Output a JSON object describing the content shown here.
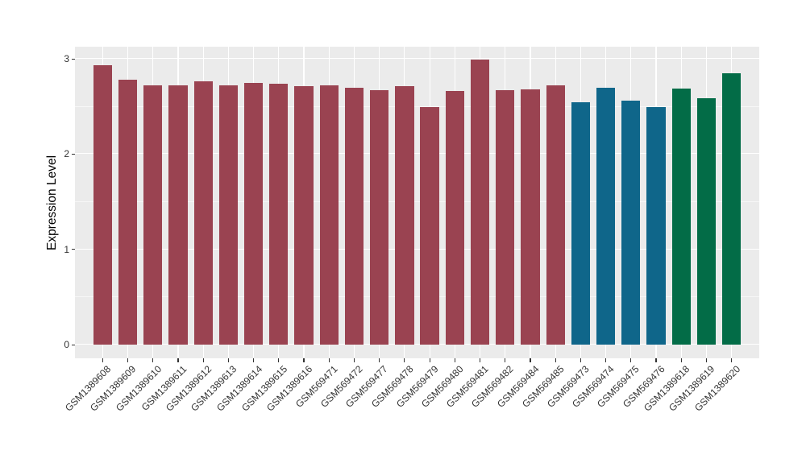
{
  "chart_data": {
    "type": "bar",
    "title": "",
    "xlabel": "",
    "ylabel": "Expression Level",
    "legend_position": "none",
    "panel_background": "#EBEBEB",
    "grid": {
      "color": "#ffffff",
      "major_yticks": [
        0,
        1,
        2,
        3
      ],
      "minor_yticks": [
        0.5,
        1.5,
        2.5
      ],
      "vertical_major": "at-each-category"
    },
    "ylim": [
      0,
      3.13
    ],
    "yticks": [
      "0",
      "1",
      "2",
      "3"
    ],
    "bar_width_fraction": 0.75,
    "colors": {
      "maroon": "#9A4351",
      "teal": "#0F668A",
      "green": "#036C47"
    },
    "categories": [
      "GSM1389608",
      "GSM1389609",
      "GSM1389610",
      "GSM1389611",
      "GSM1389612",
      "GSM1389613",
      "GSM1389614",
      "GSM1389615",
      "GSM1389616",
      "GSM569471",
      "GSM569472",
      "GSM569477",
      "GSM569478",
      "GSM569479",
      "GSM569480",
      "GSM569481",
      "GSM569482",
      "GSM569484",
      "GSM569485",
      "GSM569473",
      "GSM569474",
      "GSM569475",
      "GSM569476",
      "GSM1389618",
      "GSM1389619",
      "GSM1389620"
    ],
    "values": [
      2.93,
      2.78,
      2.72,
      2.72,
      2.76,
      2.72,
      2.75,
      2.74,
      2.71,
      2.72,
      2.7,
      2.67,
      2.71,
      2.49,
      2.66,
      2.99,
      2.67,
      2.68,
      2.72,
      2.54,
      2.7,
      2.56,
      2.49,
      2.69,
      2.59,
      2.85
    ],
    "bar_colors": [
      "#9A4351",
      "#9A4351",
      "#9A4351",
      "#9A4351",
      "#9A4351",
      "#9A4351",
      "#9A4351",
      "#9A4351",
      "#9A4351",
      "#9A4351",
      "#9A4351",
      "#9A4351",
      "#9A4351",
      "#9A4351",
      "#9A4351",
      "#9A4351",
      "#9A4351",
      "#9A4351",
      "#9A4351",
      "#0F668A",
      "#0F668A",
      "#0F668A",
      "#0F668A",
      "#036C47",
      "#036C47",
      "#036C47"
    ]
  }
}
